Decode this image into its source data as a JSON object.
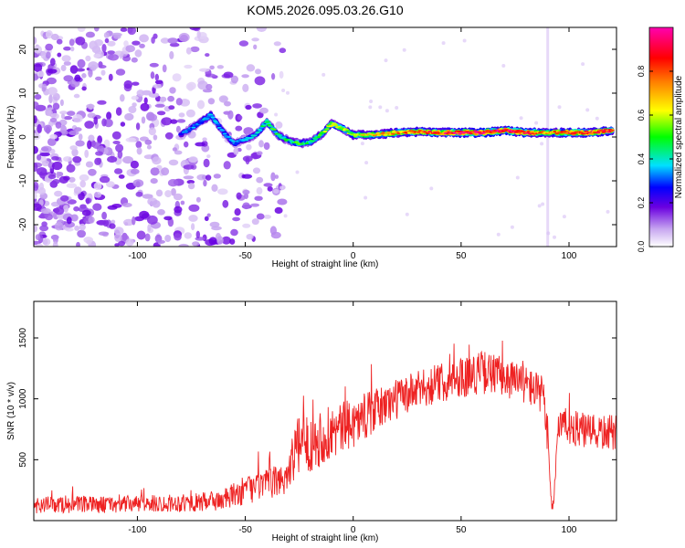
{
  "title": "KOM5.2026.095.03.26.G10",
  "chart_data": [
    {
      "type": "heatmap",
      "xlabel": "Height of straight line (km)",
      "ylabel": "Frequency (Hz)",
      "xlim": [
        -148,
        122
      ],
      "ylim": [
        -25,
        25
      ],
      "xticks": [
        -100,
        -50,
        0,
        50,
        100
      ],
      "yticks": [
        -20,
        -10,
        0,
        10,
        20
      ],
      "xtick_labels": [
        "-100",
        "-50",
        "0",
        "50",
        "100"
      ],
      "ytick_labels": [
        "-20",
        "-10",
        "0",
        "10",
        "20"
      ],
      "colorbar": {
        "label": "Normalized spectral amplitude",
        "range": [
          0,
          1
        ],
        "ticks": [
          0.0,
          0.2,
          0.4,
          0.6,
          0.8
        ],
        "tick_labels": [
          "0.0",
          "0.2",
          "0.4",
          "0.6",
          "0.8"
        ],
        "colors": [
          "#ffffff",
          "#c7a6f0",
          "#6a00e0",
          "#0000ff",
          "#00e0ff",
          "#00ff00",
          "#ffff00",
          "#ff8000",
          "#ff0000",
          "#ff00b0"
        ]
      },
      "ridge": {
        "x": [
          -80,
          -72,
          -66,
          -60,
          -55,
          -50,
          -45,
          -40,
          -35,
          -30,
          -25,
          -20,
          -15,
          -10,
          -5,
          0,
          10,
          20,
          30,
          40,
          50,
          60,
          70,
          80,
          90,
          100,
          110,
          120
        ],
        "y": [
          0.5,
          3,
          5,
          1,
          -1.5,
          -0.5,
          0.5,
          3.5,
          0.5,
          -0.8,
          -1.5,
          -1.2,
          0.5,
          3,
          2,
          0.5,
          0.5,
          1,
          1.2,
          1,
          1,
          1,
          1.5,
          1,
          1,
          1,
          1,
          1.5
        ],
        "amp": [
          0.35,
          0.4,
          0.45,
          0.38,
          0.4,
          0.4,
          0.42,
          0.55,
          0.5,
          0.5,
          0.55,
          0.5,
          0.55,
          0.65,
          0.6,
          0.6,
          0.7,
          0.75,
          0.8,
          0.85,
          0.9,
          0.92,
          0.9,
          0.92,
          0.7,
          0.85,
          0.85,
          0.85
        ]
      },
      "noise_region_x": [
        -148,
        -40
      ]
    },
    {
      "type": "line",
      "xlabel": "Height of straight line (km)",
      "ylabel": "SNR (10 * v/v)",
      "xlim": [
        -148,
        122
      ],
      "ylim": [
        0,
        1800
      ],
      "xticks": [
        -100,
        -50,
        0,
        50,
        100
      ],
      "yticks": [
        500,
        1000,
        1500
      ],
      "xtick_labels": [
        "-100",
        "-50",
        "0",
        "50",
        "100"
      ],
      "ytick_labels": [
        "500",
        "1000",
        "1500"
      ],
      "series_color": "#ee2222",
      "envelope": {
        "x": [
          -148,
          -120,
          -90,
          -70,
          -60,
          -50,
          -40,
          -32,
          -26,
          -20,
          -10,
          0,
          10,
          20,
          30,
          40,
          50,
          60,
          70,
          80,
          88,
          91,
          92,
          93,
          95,
          100,
          110,
          122
        ],
        "y": [
          130,
          130,
          140,
          150,
          170,
          250,
          300,
          340,
          600,
          650,
          720,
          800,
          900,
          1000,
          1070,
          1130,
          1180,
          1220,
          1180,
          1120,
          1030,
          500,
          80,
          200,
          800,
          770,
          720,
          720
        ],
        "amp": [
          70,
          70,
          70,
          80,
          90,
          120,
          120,
          140,
          240,
          250,
          230,
          200,
          180,
          170,
          160,
          160,
          170,
          180,
          170,
          160,
          160,
          150,
          60,
          80,
          140,
          150,
          150,
          150
        ]
      }
    }
  ]
}
